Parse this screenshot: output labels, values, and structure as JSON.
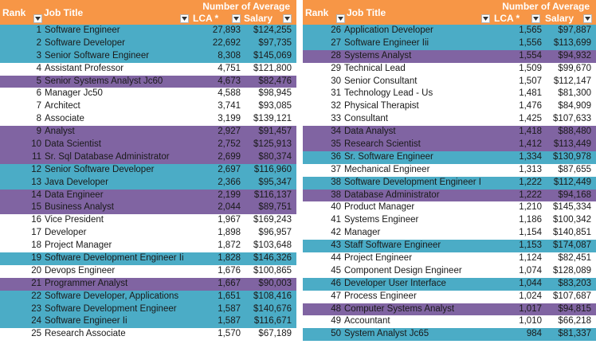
{
  "headers": {
    "rank": "Rank",
    "job": "Job Title",
    "top": "Number of Average",
    "lca": "LCA *",
    "salary": "Salary"
  },
  "left": [
    {
      "rank": "1",
      "job": "Software Engineer",
      "lca": "27,893",
      "salary": "$124,255",
      "band": "teal"
    },
    {
      "rank": "2",
      "job": "Software Developer",
      "lca": "22,692",
      "salary": "$97,735",
      "band": "teal"
    },
    {
      "rank": "3",
      "job": "Senior Software Engineer",
      "lca": "8,308",
      "salary": "$145,069",
      "band": "teal"
    },
    {
      "rank": "4",
      "job": "Assistant Professor",
      "lca": "4,751",
      "salary": "$121,800",
      "band": "white"
    },
    {
      "rank": "5",
      "job": "Senior Systems Analyst Jc60",
      "lca": "4,673",
      "salary": "$82,476",
      "band": "purple"
    },
    {
      "rank": "6",
      "job": "Manager Jc50",
      "lca": "4,588",
      "salary": "$98,945",
      "band": "white"
    },
    {
      "rank": "7",
      "job": "Architect",
      "lca": "3,741",
      "salary": "$93,085",
      "band": "white"
    },
    {
      "rank": "8",
      "job": "Associate",
      "lca": "3,199",
      "salary": "$139,121",
      "band": "white"
    },
    {
      "rank": "9",
      "job": "Analyst",
      "lca": "2,927",
      "salary": "$91,457",
      "band": "purple"
    },
    {
      "rank": "10",
      "job": "Data Scientist",
      "lca": "2,752",
      "salary": "$125,913",
      "band": "purple"
    },
    {
      "rank": "11",
      "job": "Sr. Sql Database Administrator",
      "lca": "2,699",
      "salary": "$80,374",
      "band": "purple"
    },
    {
      "rank": "12",
      "job": "Senior Software Developer",
      "lca": "2,697",
      "salary": "$116,960",
      "band": "teal"
    },
    {
      "rank": "13",
      "job": "Java Developer",
      "lca": "2,366",
      "salary": "$95,347",
      "band": "teal"
    },
    {
      "rank": "14",
      "job": "Data Engineer",
      "lca": "2,199",
      "salary": "$116,137",
      "band": "purple"
    },
    {
      "rank": "15",
      "job": "Business Analyst",
      "lca": "2,044",
      "salary": "$89,751",
      "band": "purple"
    },
    {
      "rank": "16",
      "job": "Vice President",
      "lca": "1,967",
      "salary": "$169,243",
      "band": "white"
    },
    {
      "rank": "17",
      "job": "Developer",
      "lca": "1,898",
      "salary": "$96,957",
      "band": "white"
    },
    {
      "rank": "18",
      "job": "Project Manager",
      "lca": "1,872",
      "salary": "$103,648",
      "band": "white"
    },
    {
      "rank": "19",
      "job": "Software Development Engineer Ii",
      "lca": "1,828",
      "salary": "$146,326",
      "band": "teal"
    },
    {
      "rank": "20",
      "job": "Devops Engineer",
      "lca": "1,676",
      "salary": "$100,865",
      "band": "white"
    },
    {
      "rank": "21",
      "job": "Programmer Analyst",
      "lca": "1,667",
      "salary": "$90,003",
      "band": "purple"
    },
    {
      "rank": "22",
      "job": "Software Developer, Applications",
      "lca": "1,651",
      "salary": "$108,416",
      "band": "teal"
    },
    {
      "rank": "23",
      "job": "Software Development Engineer",
      "lca": "1,587",
      "salary": "$140,676",
      "band": "teal"
    },
    {
      "rank": "24",
      "job": "Software Engineer Ii",
      "lca": "1,587",
      "salary": "$116,671",
      "band": "teal"
    },
    {
      "rank": "25",
      "job": "Research Associate",
      "lca": "1,570",
      "salary": "$67,189",
      "band": "white"
    }
  ],
  "right": [
    {
      "rank": "26",
      "job": "Application Developer",
      "lca": "1,565",
      "salary": "$97,887",
      "band": "teal"
    },
    {
      "rank": "27",
      "job": "Software Engineer Iii",
      "lca": "1,556",
      "salary": "$113,699",
      "band": "teal"
    },
    {
      "rank": "28",
      "job": "Systems Analyst",
      "lca": "1,554",
      "salary": "$94,932",
      "band": "purple"
    },
    {
      "rank": "29",
      "job": "Technical Lead",
      "lca": "1,509",
      "salary": "$99,670",
      "band": "white"
    },
    {
      "rank": "30",
      "job": "Senior Consultant",
      "lca": "1,507",
      "salary": "$112,147",
      "band": "white"
    },
    {
      "rank": "31",
      "job": "Technology Lead - Us",
      "lca": "1,481",
      "salary": "$81,300",
      "band": "white"
    },
    {
      "rank": "32",
      "job": "Physical Therapist",
      "lca": "1,476",
      "salary": "$84,909",
      "band": "white"
    },
    {
      "rank": "33",
      "job": "Consultant",
      "lca": "1,425",
      "salary": "$107,633",
      "band": "white"
    },
    {
      "rank": "34",
      "job": "Data Analyst",
      "lca": "1,418",
      "salary": "$88,480",
      "band": "purple"
    },
    {
      "rank": "35",
      "job": "Research Scientist",
      "lca": "1,412",
      "salary": "$113,449",
      "band": "purple"
    },
    {
      "rank": "36",
      "job": "Sr. Software Engineer",
      "lca": "1,334",
      "salary": "$130,978",
      "band": "teal"
    },
    {
      "rank": "37",
      "job": "Mechanical Engineer",
      "lca": "1,313",
      "salary": "$87,655",
      "band": "white"
    },
    {
      "rank": "38",
      "job": "Software Development Engineer I",
      "lca": "1,222",
      "salary": "$112,449",
      "band": "teal"
    },
    {
      "rank": "38",
      "job": "Database Administrator",
      "lca": "1,222",
      "salary": "$94,168",
      "band": "purple"
    },
    {
      "rank": "40",
      "job": "Product Manager",
      "lca": "1,210",
      "salary": "$145,334",
      "band": "white"
    },
    {
      "rank": "41",
      "job": "Systems Engineer",
      "lca": "1,186",
      "salary": "$100,342",
      "band": "white"
    },
    {
      "rank": "42",
      "job": "Manager",
      "lca": "1,154",
      "salary": "$140,851",
      "band": "white"
    },
    {
      "rank": "43",
      "job": "Staff Software Engineer",
      "lca": "1,153",
      "salary": "$174,087",
      "band": "teal"
    },
    {
      "rank": "44",
      "job": "Project Engineer",
      "lca": "1,124",
      "salary": "$82,451",
      "band": "white"
    },
    {
      "rank": "45",
      "job": "Component Design Engineer",
      "lca": "1,074",
      "salary": "$128,089",
      "band": "white"
    },
    {
      "rank": "46",
      "job": "Developer User Interface",
      "lca": "1,044",
      "salary": "$83,203",
      "band": "teal"
    },
    {
      "rank": "47",
      "job": "Process Engineer",
      "lca": "1,024",
      "salary": "$107,687",
      "band": "white"
    },
    {
      "rank": "48",
      "job": "Computer Systems Analyst",
      "lca": "1,017",
      "salary": "$94,815",
      "band": "purple"
    },
    {
      "rank": "49",
      "job": "Accountant",
      "lca": "1,010",
      "salary": "$66,218",
      "band": "white"
    },
    {
      "rank": "50",
      "job": "System Analyst Jc65",
      "lca": "984",
      "salary": "$81,337",
      "band": "teal"
    }
  ],
  "colors": {
    "header": "#f79646",
    "teal": "#4bacc6",
    "purple": "#8064a2",
    "white": "#ffffff"
  },
  "icons": {
    "filter": "dropdown-arrow-icon"
  }
}
